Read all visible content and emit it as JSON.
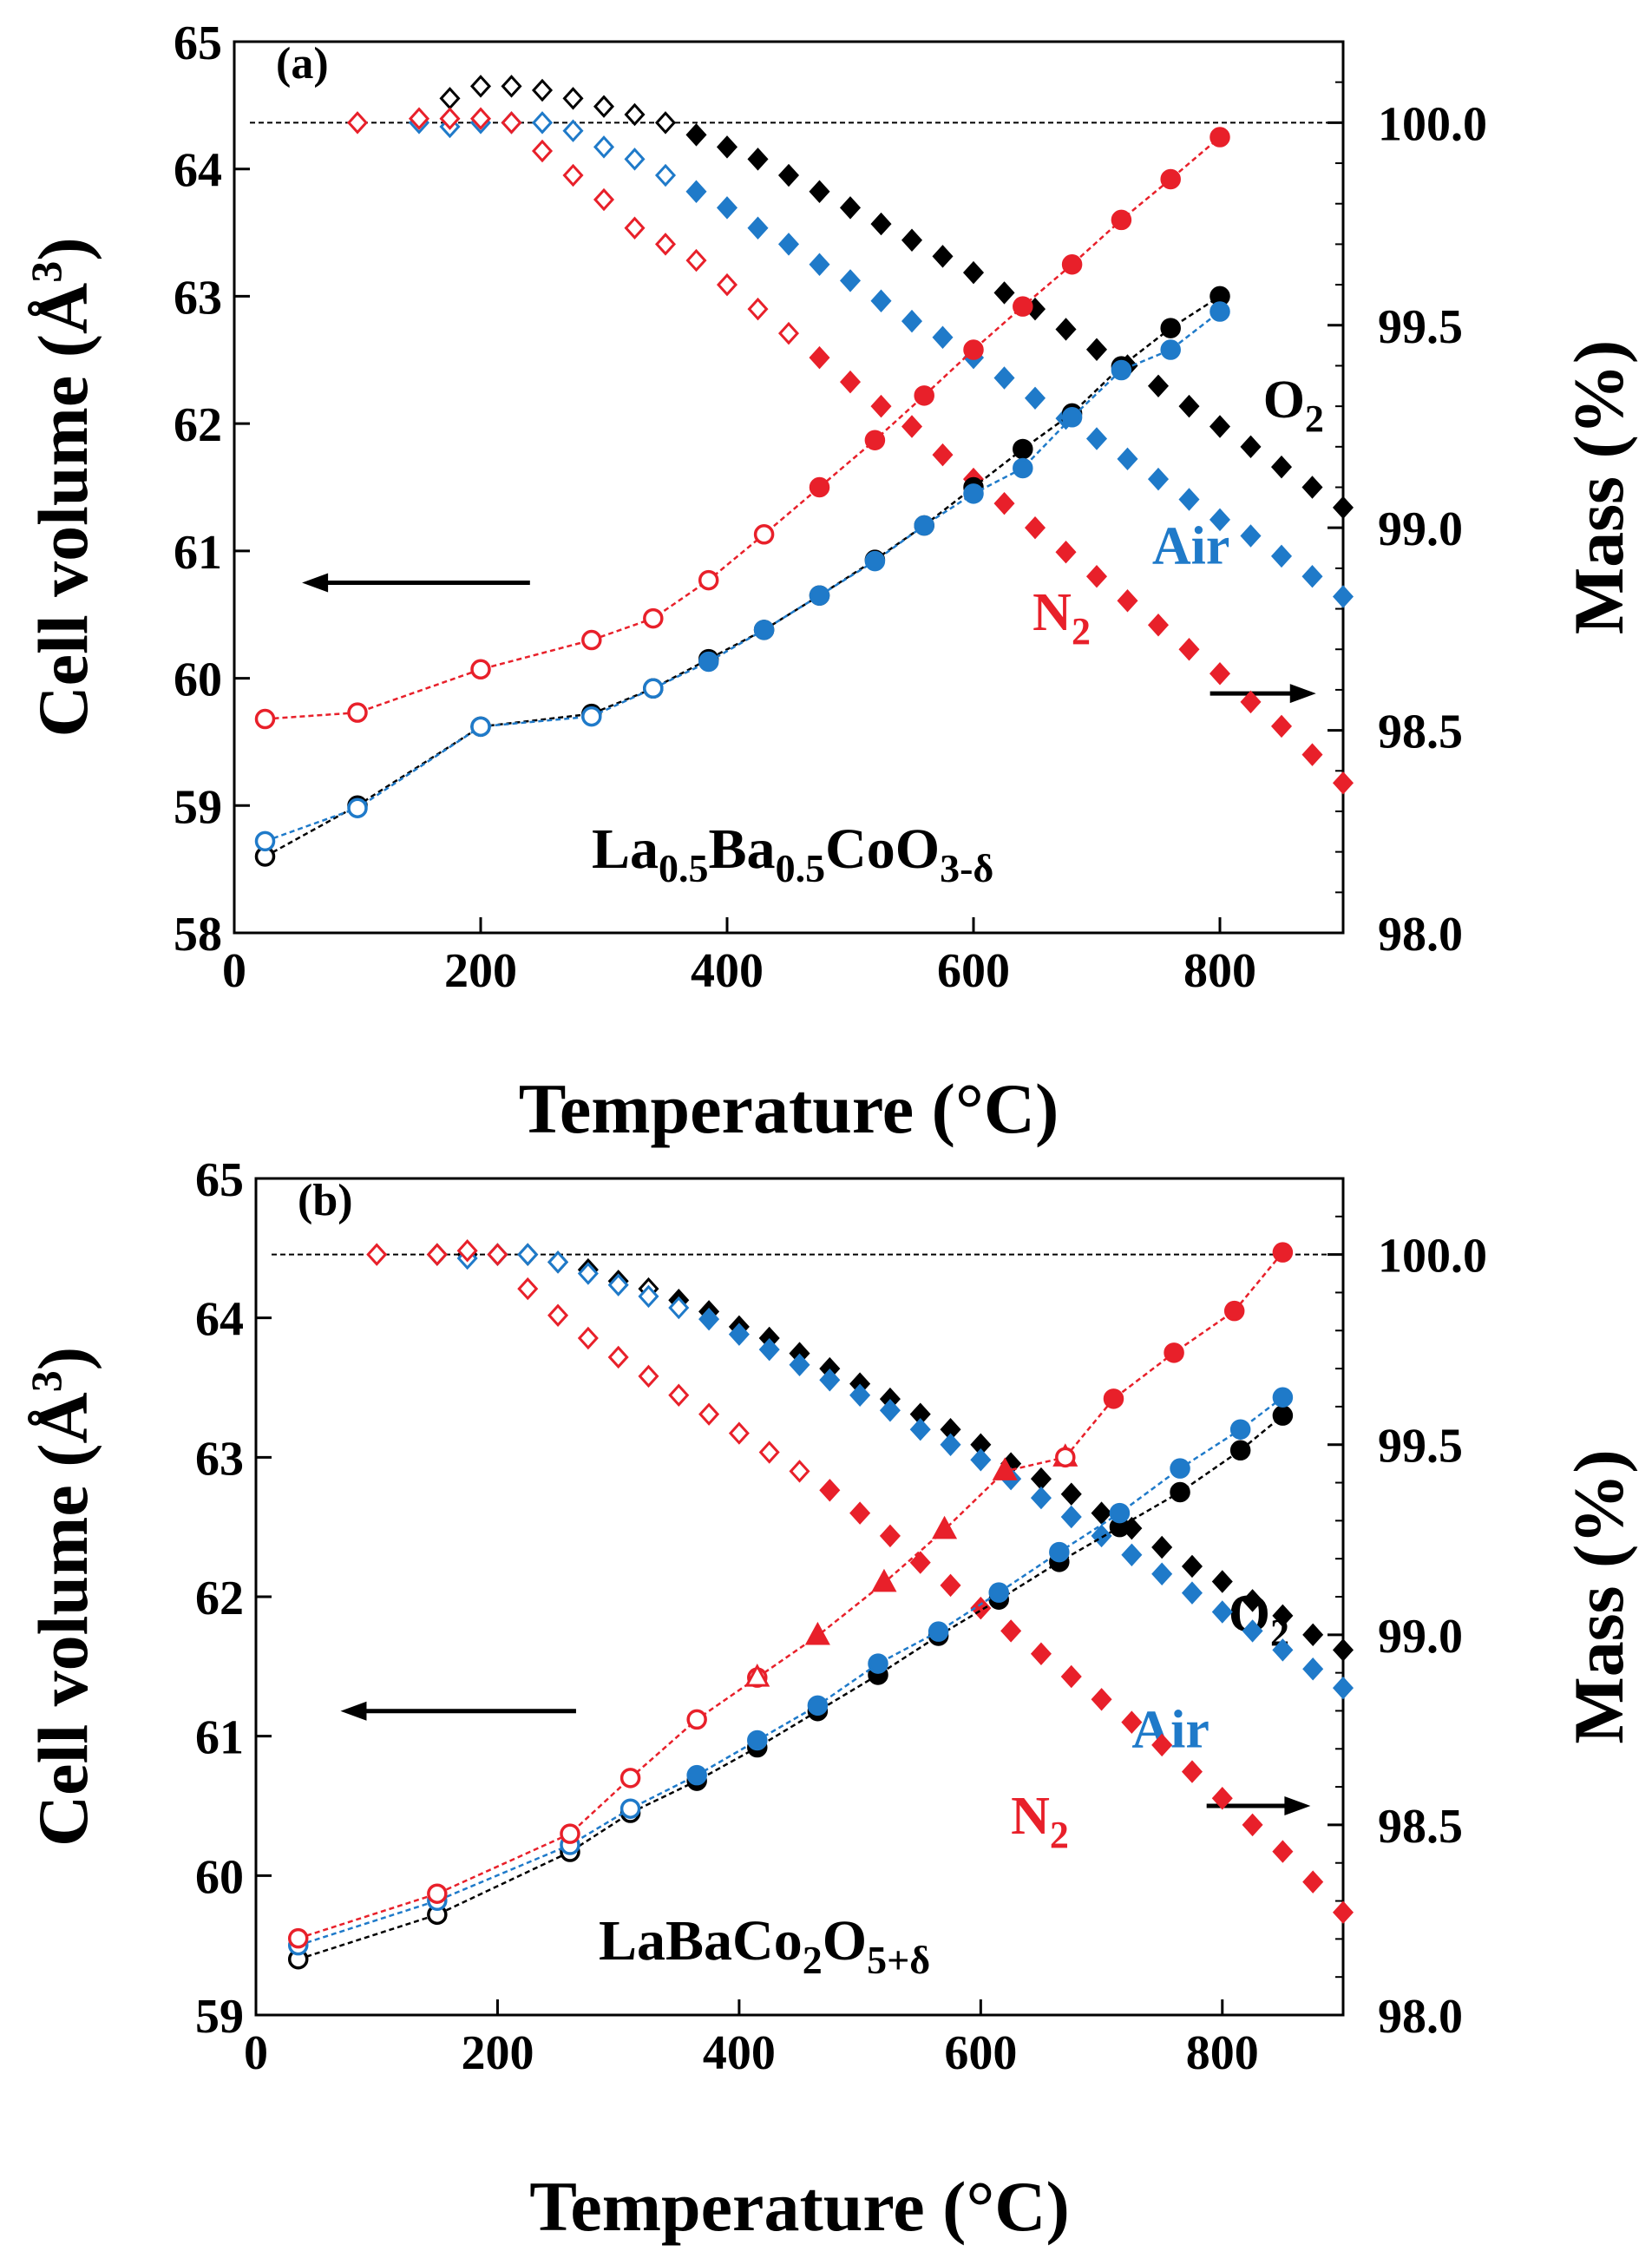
{
  "figure_type": "Composite",
  "chart_data": [
    {
      "type": "scatter",
      "panel_label": "(a)",
      "compound_parts": [
        {
          "t": "La",
          "s": false
        },
        {
          "t": "0.5",
          "s": true
        },
        {
          "t": "Ba",
          "s": false
        },
        {
          "t": "0.5",
          "s": true
        },
        {
          "t": "CoO",
          "s": false
        },
        {
          "t": "3-δ",
          "s": true
        }
      ],
      "xlabel": "Temperature (°C)",
      "ylabel_left": "Cell volume (Å",
      "ylabel_left_sup": "3",
      "ylabel_left_close": ")",
      "ylabel_right": "Mass (%)",
      "xlim": [
        0,
        900
      ],
      "ylim_left": [
        58,
        65
      ],
      "ylim_right": [
        98.0,
        100.2
      ],
      "xticks": [
        0,
        200,
        400,
        600,
        800
      ],
      "xtick_labels": [
        "0",
        "200",
        "400",
        "600",
        "800"
      ],
      "yticks_left": [
        58,
        59,
        60,
        61,
        62,
        63,
        64,
        65
      ],
      "ytick_labels_left": [
        "58",
        "59",
        "60",
        "61",
        "62",
        "63",
        "64",
        "65"
      ],
      "yticks_right": [
        98.0,
        98.5,
        99.0,
        99.5,
        100.0
      ],
      "ytick_labels_right": [
        "98.0",
        "98.5",
        "99.0",
        "99.5",
        "100.0"
      ],
      "reference_line_mass": 100.0,
      "series_labels": [
        {
          "text": "O",
          "sub": "2",
          "color": "#000000",
          "x": 835,
          "y": 62.05
        },
        {
          "text": "Air",
          "sub": "",
          "color": "#1f7ac9",
          "x": 745,
          "y": 60.9
        },
        {
          "text": "N",
          "sub": "2",
          "color": "#e8202a",
          "x": 648,
          "y": 60.38
        }
      ],
      "arrows": [
        {
          "direction": "left",
          "x_from": 240,
          "x_to": 55,
          "y": 60.75
        },
        {
          "direction": "right",
          "x_from": 792,
          "x_to": 878,
          "y": 59.88
        }
      ],
      "volume_series": [
        {
          "name": "O2",
          "color": "#000000",
          "marker": "circle",
          "x": [
            25,
            100,
            200,
            290,
            340,
            385,
            430,
            475,
            520,
            560,
            600,
            640,
            680,
            720,
            760,
            800
          ],
          "y": [
            58.6,
            59.0,
            59.62,
            59.72,
            59.92,
            60.15,
            60.38,
            60.65,
            60.93,
            61.2,
            61.5,
            61.8,
            62.08,
            62.45,
            62.75,
            63.0
          ],
          "filled_from_x": 385
        },
        {
          "name": "Air",
          "color": "#1f7ac9",
          "marker": "circle",
          "x": [
            25,
            100,
            200,
            290,
            340,
            385,
            430,
            475,
            520,
            560,
            600,
            640,
            680,
            720,
            760,
            800
          ],
          "y": [
            58.72,
            58.98,
            59.62,
            59.7,
            59.92,
            60.13,
            60.38,
            60.65,
            60.92,
            61.2,
            61.45,
            61.65,
            62.05,
            62.42,
            62.58,
            62.88
          ],
          "filled_from_x": 385
        },
        {
          "name": "N2",
          "color": "#e8202a",
          "marker": "circle",
          "x": [
            25,
            100,
            200,
            290,
            340,
            385,
            430,
            475,
            520,
            560,
            600,
            640,
            680,
            720,
            760,
            800
          ],
          "y": [
            59.68,
            59.73,
            60.07,
            60.3,
            60.47,
            60.77,
            61.13,
            61.5,
            61.87,
            62.22,
            62.58,
            62.92,
            63.25,
            63.6,
            63.92,
            64.25
          ],
          "filled_from_x": 475
        }
      ],
      "mass_series": [
        {
          "name": "O2",
          "color": "#000000",
          "marker": "diamond",
          "x": [
            175,
            200,
            225,
            250,
            275,
            300,
            325,
            350,
            375,
            400,
            425,
            450,
            475,
            500,
            525,
            550,
            575,
            600,
            625,
            650,
            675,
            700,
            725,
            750,
            775,
            800,
            825,
            850,
            875,
            900
          ],
          "y": [
            100.06,
            100.09,
            100.09,
            100.08,
            100.06,
            100.04,
            100.02,
            100.0,
            99.97,
            99.94,
            99.91,
            99.87,
            99.83,
            99.79,
            99.75,
            99.71,
            99.67,
            99.63,
            99.58,
            99.54,
            99.49,
            99.44,
            99.4,
            99.35,
            99.3,
            99.25,
            99.2,
            99.15,
            99.1,
            99.05
          ],
          "filled_from_x": 375
        },
        {
          "name": "Air",
          "color": "#1f7ac9",
          "marker": "diamond",
          "x": [
            150,
            175,
            200,
            225,
            250,
            275,
            300,
            325,
            350,
            375,
            400,
            425,
            450,
            475,
            500,
            525,
            550,
            575,
            600,
            625,
            650,
            675,
            700,
            725,
            750,
            775,
            800,
            825,
            850,
            875,
            900
          ],
          "y": [
            100.0,
            99.99,
            100.0,
            100.0,
            100.0,
            99.98,
            99.94,
            99.91,
            99.87,
            99.83,
            99.79,
            99.74,
            99.7,
            99.65,
            99.61,
            99.56,
            99.51,
            99.47,
            99.42,
            99.37,
            99.32,
            99.27,
            99.22,
            99.17,
            99.12,
            99.07,
            99.02,
            98.98,
            98.93,
            98.88,
            98.83
          ],
          "filled_from_x": 375
        },
        {
          "name": "N2",
          "color": "#e8202a",
          "marker": "diamond",
          "x": [
            100,
            150,
            175,
            200,
            225,
            250,
            275,
            300,
            325,
            350,
            375,
            400,
            425,
            450,
            475,
            500,
            525,
            550,
            575,
            600,
            625,
            650,
            675,
            700,
            725,
            750,
            775,
            800,
            825,
            850,
            875,
            900
          ],
          "y": [
            100.0,
            100.01,
            100.01,
            100.01,
            100.0,
            99.93,
            99.87,
            99.81,
            99.74,
            99.7,
            99.66,
            99.6,
            99.54,
            99.48,
            99.42,
            99.36,
            99.3,
            99.25,
            99.18,
            99.12,
            99.06,
            99.0,
            98.94,
            98.88,
            98.82,
            98.76,
            98.7,
            98.64,
            98.57,
            98.51,
            98.44,
            98.37
          ],
          "filled_from_x": 475
        }
      ]
    },
    {
      "type": "scatter",
      "panel_label": "(b)",
      "compound_parts": [
        {
          "t": "LaBaCo",
          "s": false
        },
        {
          "t": "2",
          "s": true
        },
        {
          "t": "O",
          "s": false
        },
        {
          "t": "5+δ",
          "s": true
        }
      ],
      "xlabel": "Temperature (°C)",
      "ylabel_left": "Cell volume (Å",
      "ylabel_left_sup": "3",
      "ylabel_left_close": ")",
      "ylabel_right": "Mass (%)",
      "xlim": [
        0,
        900
      ],
      "ylim_left": [
        59,
        65
      ],
      "ylim_right": [
        98.0,
        100.2
      ],
      "xticks": [
        0,
        200,
        400,
        600,
        800
      ],
      "xtick_labels": [
        "0",
        "200",
        "400",
        "600",
        "800"
      ],
      "yticks_left": [
        59,
        60,
        61,
        62,
        63,
        64,
        65
      ],
      "ytick_labels_left": [
        "59",
        "60",
        "61",
        "62",
        "63",
        "64",
        "65"
      ],
      "yticks_right": [
        98.0,
        98.5,
        99.0,
        99.5,
        100.0
      ],
      "ytick_labels_right": [
        "98.0",
        "98.5",
        "99.0",
        "99.5",
        "100.0"
      ],
      "reference_line_mass": 100.0,
      "series_labels": [
        {
          "text": "O",
          "sub": "2",
          "color": "#000000",
          "x": 805,
          "y": 61.75
        },
        {
          "text": "Air",
          "sub": "",
          "color": "#1f7ac9",
          "x": 725,
          "y": 60.92
        },
        {
          "text": "N",
          "sub": "2",
          "color": "#e8202a",
          "x": 625,
          "y": 60.3
        }
      ],
      "arrows": [
        {
          "direction": "left",
          "x_from": 265,
          "x_to": 70,
          "y": 61.18
        },
        {
          "direction": "right",
          "x_from": 787,
          "x_to": 873,
          "y": 60.5
        }
      ],
      "volume_series": [
        {
          "name": "O2",
          "color": "#000000",
          "marker": "circle",
          "x": [
            35,
            150,
            260,
            310,
            365,
            415,
            465,
            515,
            565,
            615,
            665,
            715,
            765,
            815,
            850
          ],
          "y": [
            59.4,
            59.72,
            60.17,
            60.45,
            60.68,
            60.92,
            61.18,
            61.44,
            61.72,
            61.98,
            62.25,
            62.5,
            62.75,
            63.05,
            63.3
          ],
          "filled_from_x": 365
        },
        {
          "name": "Air",
          "color": "#1f7ac9",
          "marker": "circle",
          "x": [
            35,
            150,
            260,
            310,
            365,
            415,
            465,
            515,
            565,
            615,
            665,
            715,
            765,
            815,
            850
          ],
          "y": [
            59.5,
            59.82,
            60.22,
            60.48,
            60.72,
            60.97,
            61.22,
            61.52,
            61.75,
            62.03,
            62.32,
            62.6,
            62.92,
            63.2,
            63.43
          ],
          "filled_from_x": 365
        },
        {
          "name": "N2",
          "color": "#e8202a",
          "marker": "circle",
          "x": [
            35,
            150,
            260,
            310,
            365,
            415
          ],
          "y": [
            59.55,
            59.87,
            60.3,
            60.7,
            61.12,
            61.42
          ],
          "filled_from_x": 9999
        },
        {
          "name": "N2",
          "color": "#e8202a",
          "marker": "triangle",
          "x": [
            415,
            465,
            520,
            570,
            620,
            670
          ],
          "y": [
            61.42,
            61.72,
            62.1,
            62.48,
            62.9,
            63.0
          ],
          "filled_from_x": 465
        },
        {
          "name": "N2",
          "color": "#e8202a",
          "marker": "circle",
          "x": [
            670,
            710,
            760,
            810,
            850
          ],
          "y": [
            63.0,
            63.42,
            63.75,
            64.05,
            64.47
          ],
          "filled_from_x": 710
        }
      ],
      "mass_series": [
        {
          "name": "O2",
          "color": "#000000",
          "marker": "diamond",
          "x": [
            150,
            175,
            200,
            225,
            250,
            275,
            300,
            325,
            350,
            375,
            400,
            425,
            450,
            475,
            500,
            525,
            550,
            575,
            600,
            625,
            650,
            675,
            700,
            725,
            750,
            775,
            800,
            825,
            850,
            875,
            900
          ],
          "y": [
            100.0,
            100.0,
            100.0,
            100.0,
            99.98,
            99.96,
            99.93,
            99.91,
            99.88,
            99.85,
            99.81,
            99.78,
            99.74,
            99.7,
            99.66,
            99.62,
            99.58,
            99.54,
            99.5,
            99.45,
            99.41,
            99.37,
            99.32,
            99.28,
            99.23,
            99.18,
            99.14,
            99.09,
            99.05,
            99.0,
            98.96
          ],
          "filled_from_x": 350
        },
        {
          "name": "Air",
          "color": "#1f7ac9",
          "marker": "diamond",
          "x": [
            175,
            200,
            225,
            250,
            275,
            300,
            325,
            350,
            375,
            400,
            425,
            450,
            475,
            500,
            525,
            550,
            575,
            600,
            625,
            650,
            675,
            700,
            725,
            750,
            775,
            800,
            825,
            850,
            875,
            900
          ],
          "y": [
            99.99,
            100.0,
            100.0,
            99.98,
            99.95,
            99.92,
            99.89,
            99.86,
            99.83,
            99.79,
            99.75,
            99.71,
            99.67,
            99.63,
            99.59,
            99.54,
            99.5,
            99.46,
            99.41,
            99.36,
            99.31,
            99.26,
            99.21,
            99.16,
            99.11,
            99.06,
            99.01,
            98.96,
            98.91,
            98.86
          ],
          "filled_from_x": 375
        },
        {
          "name": "N2",
          "color": "#e8202a",
          "marker": "diamond",
          "x": [
            100,
            150,
            175,
            200,
            225,
            250,
            275,
            300,
            325,
            350,
            375,
            400,
            425,
            450,
            475,
            500,
            525,
            550,
            575,
            600,
            625,
            650,
            675,
            700,
            725,
            750,
            775,
            800,
            825,
            850,
            875,
            900
          ],
          "y": [
            100.0,
            100.0,
            100.01,
            100.0,
            99.91,
            99.84,
            99.78,
            99.73,
            99.68,
            99.63,
            99.58,
            99.53,
            99.48,
            99.43,
            99.38,
            99.32,
            99.26,
            99.19,
            99.13,
            99.07,
            99.01,
            98.95,
            98.89,
            98.83,
            98.77,
            98.71,
            98.64,
            98.57,
            98.5,
            98.43,
            98.35,
            98.27
          ],
          "filled_from_x": 475
        }
      ]
    }
  ]
}
